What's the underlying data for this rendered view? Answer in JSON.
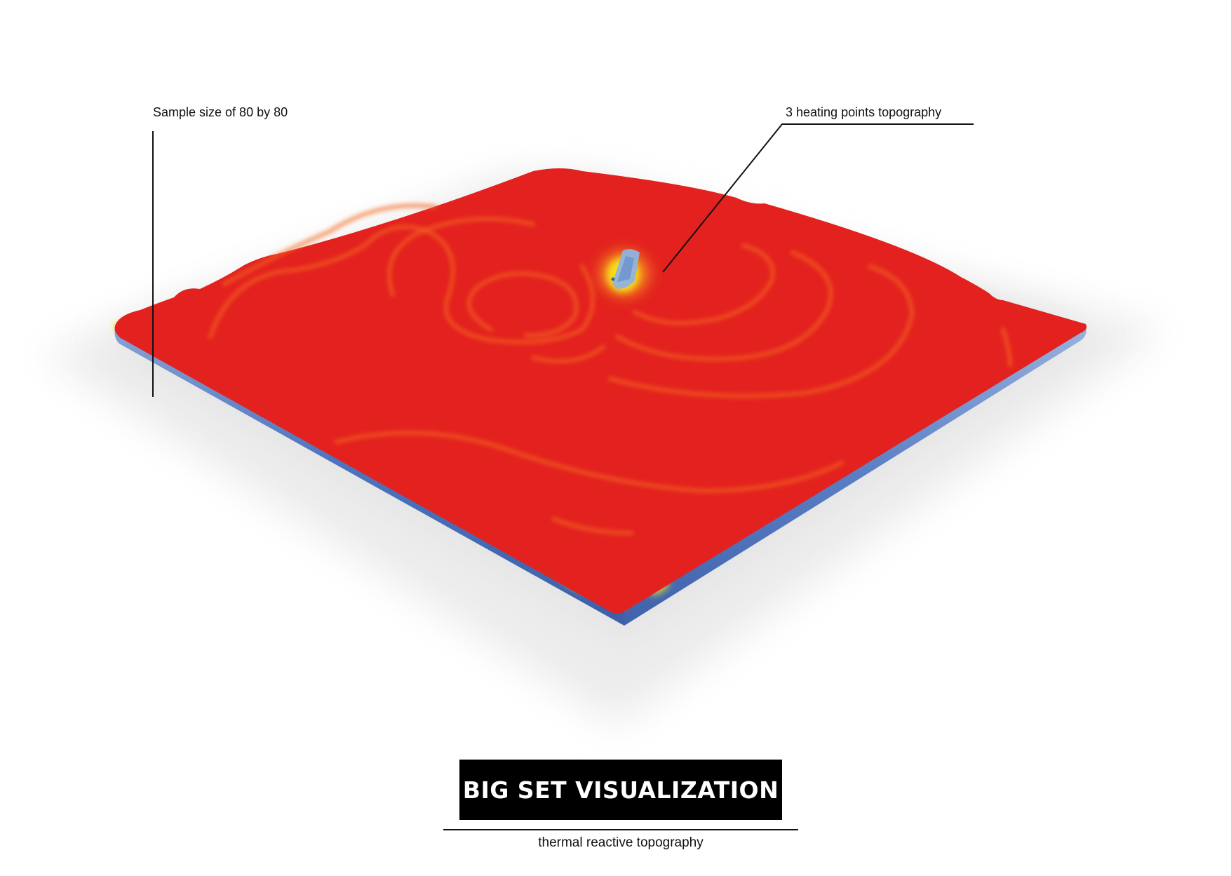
{
  "annotations": {
    "sample_size": "Sample size of 80 by 80",
    "heating_points": "3 heating points topography"
  },
  "title": "BIG SET VISUALIZATION",
  "subtitle": "thermal reactive topography",
  "colors": {
    "surface": "#e3211f",
    "contour": "#f4661f",
    "edge_side": "#4e74bf",
    "edge_light": "#8aa6d6",
    "hotspot_yellow": "#f7e11f",
    "shadow": "#e6e6e6",
    "title_bg": "#000000",
    "title_text": "#ffffff",
    "line": "#111111"
  }
}
